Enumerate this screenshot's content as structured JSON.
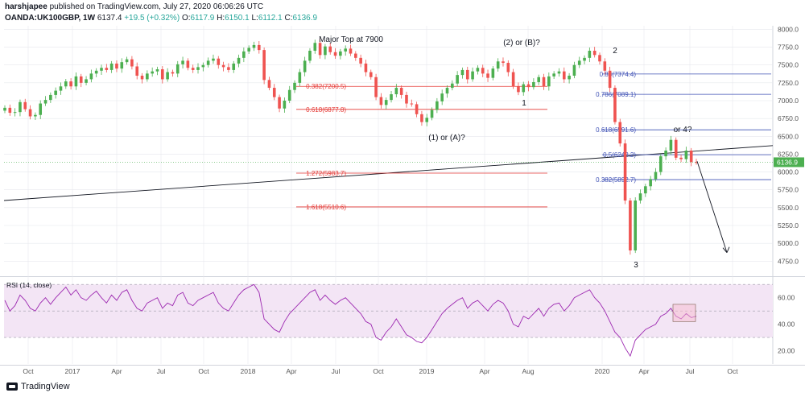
{
  "header": {
    "author": "harshjapee",
    "published": " published on TradingView.com, July 27, 2020 06:06:26 UTC",
    "symbol": "OANDA:UK100GBP, 1W",
    "last": "6137.4",
    "change": "+19.5 (+0.32%)",
    "o_label": "O:",
    "o": "6117.9",
    "h_label": "H:",
    "h": "6150.1",
    "l_label": "L:",
    "l": "6112.1",
    "c_label": "C:",
    "c": "6136.9"
  },
  "footer": {
    "brand": "TradingView"
  },
  "colors": {
    "up": "#26a69a",
    "up_bar": "#4caf50",
    "down": "#ef5350",
    "fib_red": "#e53935",
    "fib_blue": "#3f51b5",
    "rsi": "#9c27b0",
    "rsi_band": "#f3e5f5",
    "grid": "#e6e8ed"
  },
  "chart_data": [
    {
      "type": "candlestick",
      "title": "OANDA:UK100GBP, 1W",
      "ylim": [
        4550,
        8050
      ],
      "y_ticks": [
        "8000.0",
        "7750.0",
        "7500.0",
        "7250.0",
        "7000.0",
        "6750.0",
        "6500.0",
        "6250.0",
        "6000.0",
        "5750.0",
        "5500.0",
        "5250.0",
        "5000.0",
        "4750.0"
      ],
      "x_ticks": [
        "Oct",
        "2017",
        "Apr",
        "Jul",
        "Oct",
        "2018",
        "Apr",
        "Jul",
        "Oct",
        "2019",
        "Apr",
        "Aug",
        "2020",
        "Apr",
        "Jul",
        "Oct"
      ],
      "last_price_label": "6136.9",
      "closes": [
        6900,
        6830,
        6840,
        6980,
        6880,
        6780,
        6800,
        6960,
        7010,
        7080,
        7140,
        7200,
        7270,
        7200,
        7340,
        7250,
        7300,
        7380,
        7420,
        7460,
        7430,
        7520,
        7450,
        7540,
        7580,
        7480,
        7350,
        7300,
        7380,
        7410,
        7440,
        7300,
        7400,
        7380,
        7510,
        7560,
        7460,
        7430,
        7470,
        7500,
        7560,
        7590,
        7500,
        7470,
        7430,
        7520,
        7600,
        7690,
        7740,
        7780,
        7710,
        7290,
        7180,
        7050,
        6890,
        7000,
        7150,
        7250,
        7400,
        7560,
        7700,
        7810,
        7640,
        7760,
        7680,
        7630,
        7690,
        7730,
        7660,
        7600,
        7520,
        7400,
        7330,
        7050,
        6940,
        7010,
        7090,
        7180,
        7080,
        6960,
        6950,
        6810,
        6700,
        6760,
        6870,
        6990,
        7100,
        7180,
        7240,
        7360,
        7430,
        7300,
        7410,
        7460,
        7380,
        7320,
        7450,
        7550,
        7530,
        7400,
        7200,
        7120,
        7230,
        7190,
        7260,
        7330,
        7200,
        7340,
        7380,
        7410,
        7300,
        7350,
        7500,
        7560,
        7600,
        7700,
        7640,
        7550,
        7420,
        7180,
        6700,
        6400,
        5600,
        4900,
        5600,
        5700,
        5800,
        5900,
        6000,
        6220,
        6300,
        6450,
        6200,
        6180,
        6300,
        6140,
        6137
      ],
      "annotations": [
        "Major Top at 7900",
        "(2) or (B)?",
        "2",
        "1",
        "(1) or (A)?",
        "3",
        "or 4?"
      ],
      "fib_levels": [
        {
          "label": "0.382(7200.5)",
          "value": 7200.5,
          "color": "red"
        },
        {
          "label": "0.618(6877.8)",
          "value": 6877.8,
          "color": "red"
        },
        {
          "label": "1.272(5983.7)",
          "value": 5983.7,
          "color": "red"
        },
        {
          "label": "1.618(5510.6)",
          "value": 5510.6,
          "color": "red"
        },
        {
          "label": "0.88(7374.4)",
          "value": 7374.4,
          "color": "blue"
        },
        {
          "label": "0.786(7089.1)",
          "value": 7089.1,
          "color": "blue"
        },
        {
          "label": "0.618(6591.6)",
          "value": 6591.6,
          "color": "blue"
        },
        {
          "label": "0.5(6242.2)",
          "value": 6242.2,
          "color": "blue"
        },
        {
          "label": "0.382(5892.7)",
          "value": 5892.7,
          "color": "blue"
        }
      ]
    },
    {
      "type": "line",
      "series": [
        {
          "name": "RSI (14, close)"
        }
      ],
      "ylim": [
        10,
        75
      ],
      "y_ticks": [
        "60.00",
        "40.00",
        "20.00"
      ],
      "band": [
        30,
        70
      ],
      "values": [
        58,
        50,
        54,
        62,
        58,
        52,
        50,
        56,
        60,
        55,
        60,
        64,
        68,
        62,
        66,
        60,
        58,
        62,
        65,
        60,
        56,
        62,
        58,
        64,
        66,
        58,
        52,
        50,
        56,
        58,
        60,
        52,
        56,
        54,
        62,
        64,
        56,
        54,
        58,
        60,
        62,
        64,
        56,
        52,
        50,
        56,
        62,
        66,
        68,
        70,
        64,
        44,
        40,
        36,
        34,
        42,
        48,
        52,
        56,
        60,
        64,
        66,
        58,
        62,
        58,
        55,
        58,
        60,
        56,
        52,
        48,
        42,
        40,
        30,
        28,
        34,
        38,
        44,
        38,
        32,
        30,
        27,
        26,
        30,
        36,
        42,
        48,
        52,
        55,
        58,
        60,
        52,
        56,
        58,
        54,
        50,
        55,
        58,
        56,
        50,
        40,
        38,
        46,
        44,
        48,
        52,
        46,
        52,
        55,
        56,
        50,
        54,
        60,
        62,
        64,
        66,
        60,
        56,
        50,
        42,
        34,
        30,
        22,
        16,
        28,
        32,
        36,
        38,
        40,
        46,
        48,
        52,
        46,
        44,
        48,
        45,
        46
      ]
    }
  ]
}
